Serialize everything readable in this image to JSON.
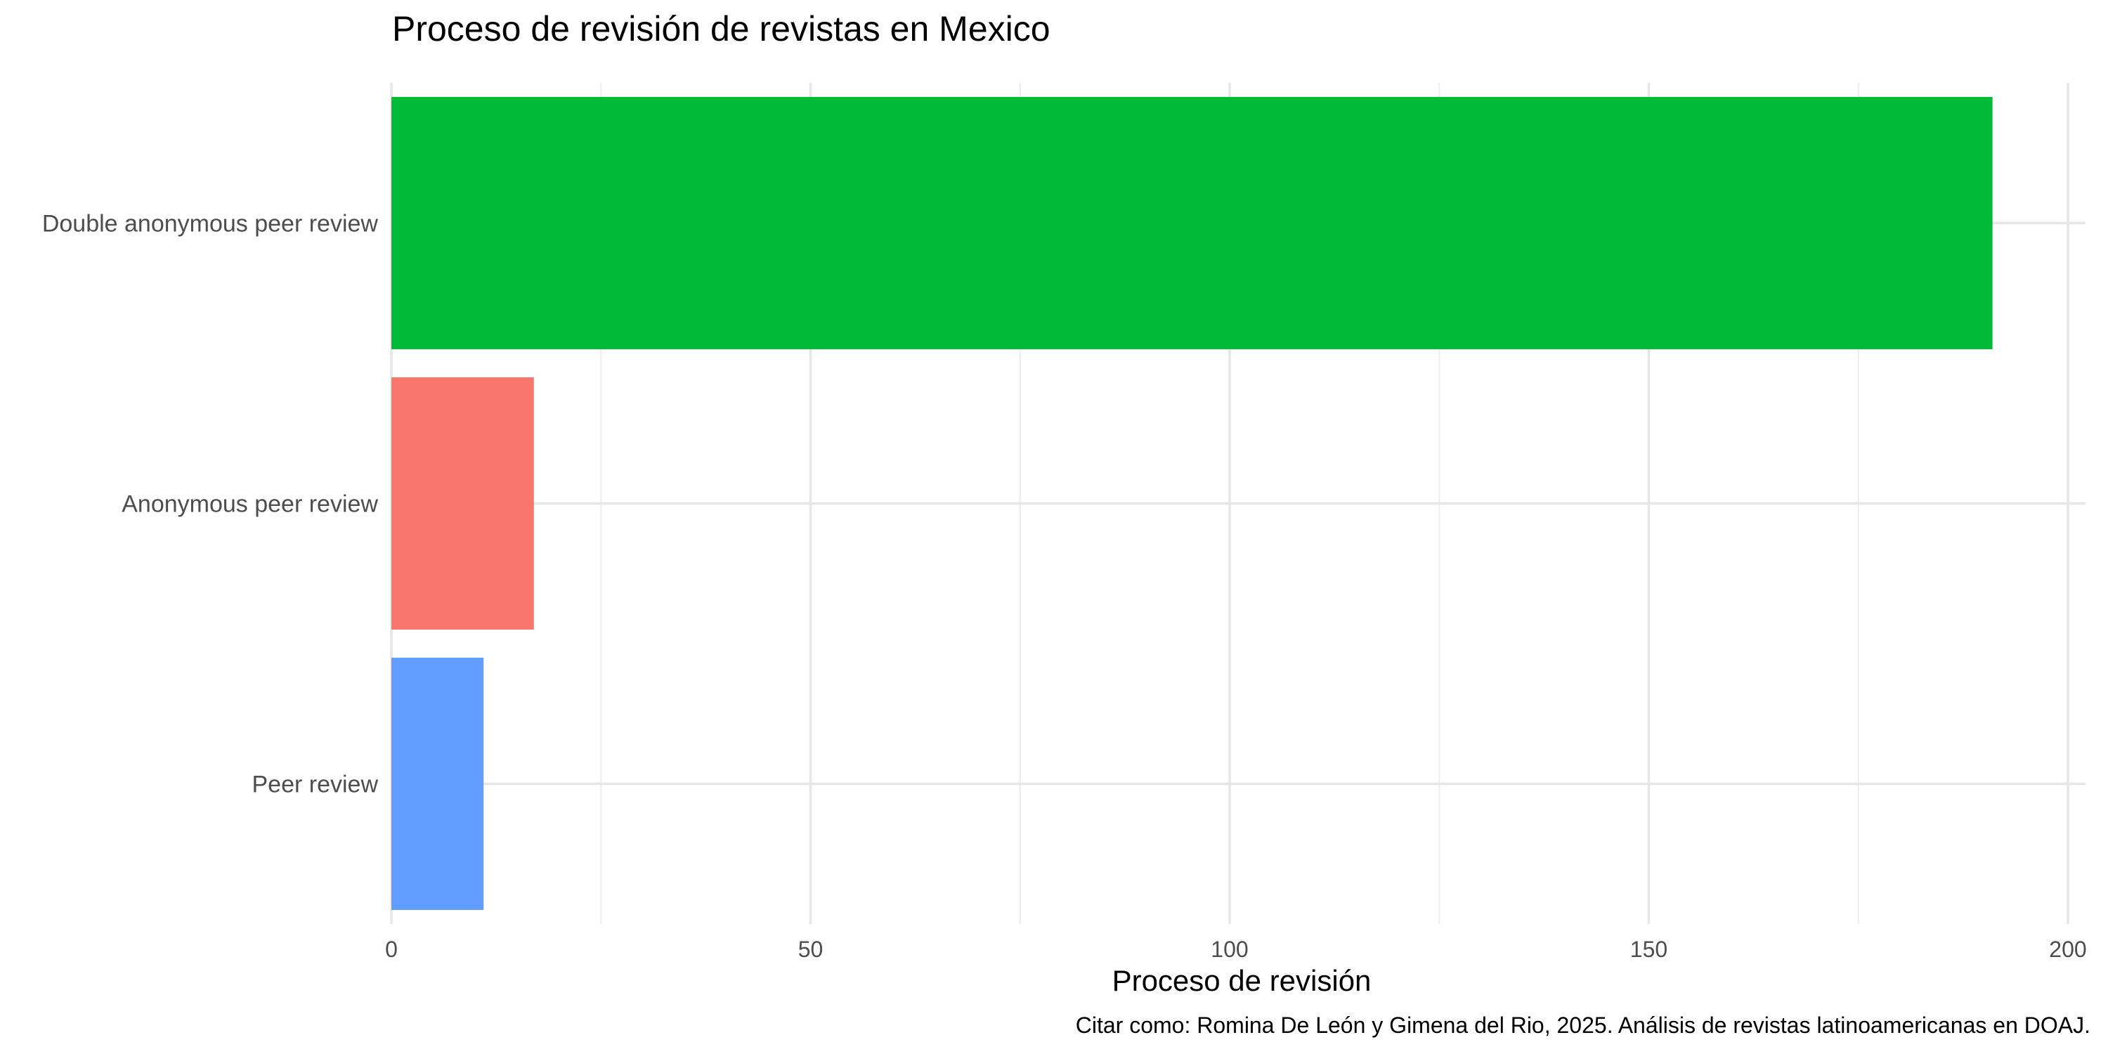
{
  "chart_data": {
    "type": "bar",
    "orientation": "horizontal",
    "title": "Proceso de revisión de revistas en Mexico",
    "xlabel": "Proceso de revisión",
    "ylabel": "",
    "caption": "Citar como: Romina De León y Gimena del Rio, 2025. Análisis de revistas latinoamericanas en DOAJ.",
    "categories": [
      "Double anonymous peer review",
      "Anonymous peer review",
      "Peer review"
    ],
    "values": [
      191,
      17,
      11
    ],
    "colors": [
      "#00BA38",
      "#F8766D",
      "#619CFF"
    ],
    "xlim": [
      0,
      200
    ],
    "xticks": [
      0,
      50,
      100,
      150,
      200
    ],
    "grid": true,
    "legend": "none"
  }
}
